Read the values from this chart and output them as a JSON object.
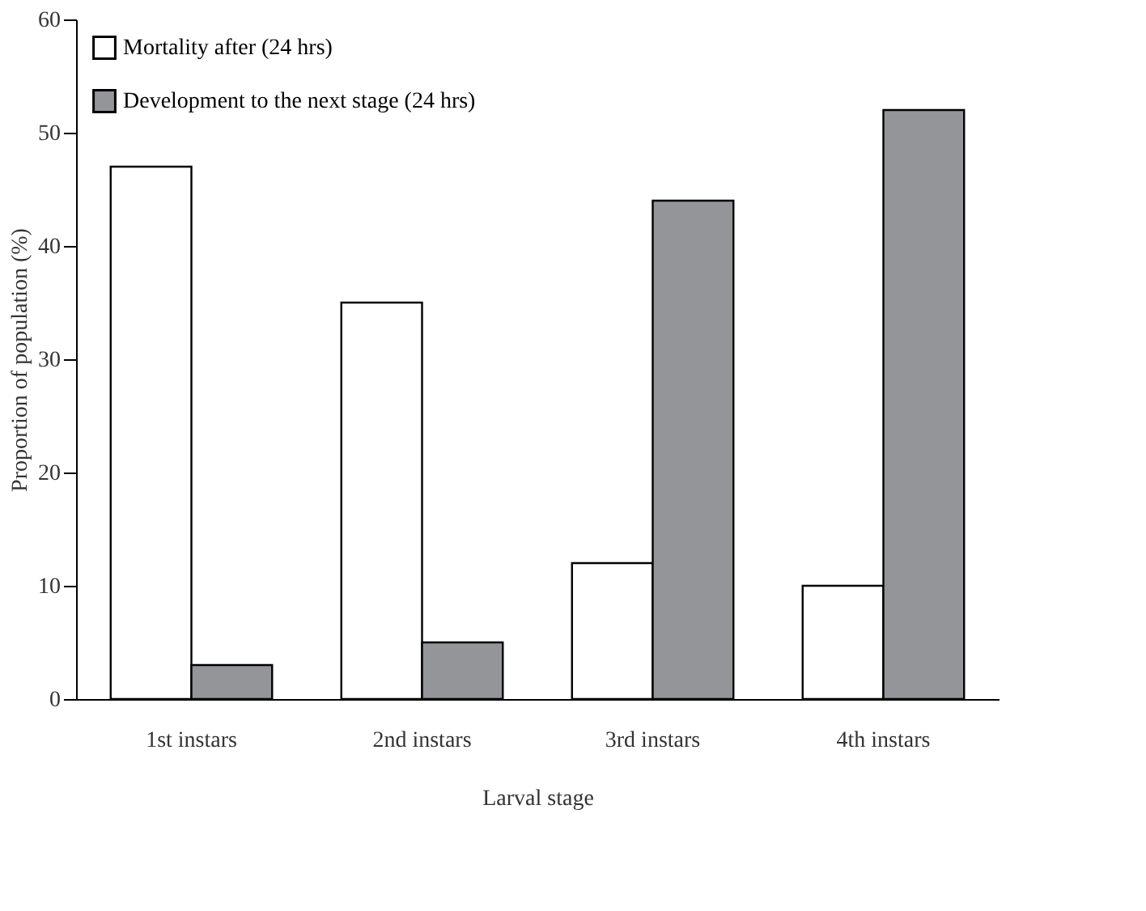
{
  "chart_data": {
    "type": "bar",
    "xlabel": "Larval stage",
    "ylabel": "Proportion of population (%)",
    "categories": [
      "1st instars",
      "2nd instars",
      "3rd instars",
      "4th instars"
    ],
    "series": [
      {
        "name": "Mortality after (24 hrs)",
        "color": "#ffffff",
        "values": [
          47,
          35,
          12,
          10
        ]
      },
      {
        "name": "Development to the next stage (24 hrs)",
        "color": "#939598",
        "values": [
          3,
          5,
          44,
          52
        ]
      }
    ],
    "ylim": [
      0,
      60
    ],
    "yticks": [
      0,
      10,
      20,
      30,
      40,
      50,
      60
    ],
    "grid": false,
    "legend": "top left"
  }
}
